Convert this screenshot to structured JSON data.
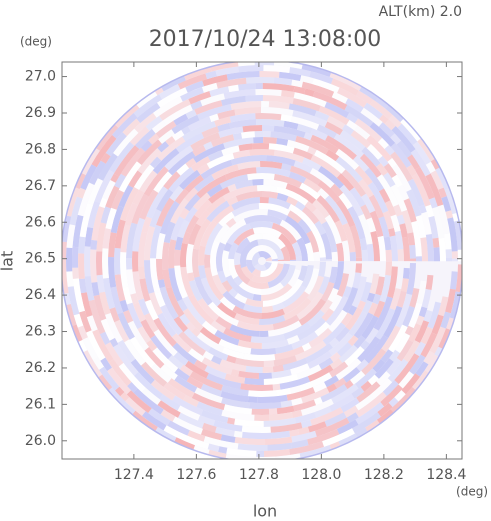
{
  "chart_data": {
    "type": "radar-ppi",
    "title": "2017/10/24 13:08:00",
    "subtitle": "ALT(km) 2.0",
    "y_unit": "(deg)",
    "x_unit": "(deg)",
    "xlabel": "lon",
    "ylabel": "lat",
    "xlim": [
      127.17,
      128.45
    ],
    "xticks": [
      {
        "value": 127.4,
        "label": "127.4"
      },
      {
        "value": 127.6,
        "label": "127.6"
      },
      {
        "value": 127.8,
        "label": "127.8"
      },
      {
        "value": 128.0,
        "label": "128.0"
      },
      {
        "value": 128.2,
        "label": "128.2"
      },
      {
        "value": 128.4,
        "label": "128.4"
      }
    ],
    "ylim": [
      25.95,
      27.04
    ],
    "yticks": [
      {
        "value": 26.0,
        "label": "26.0"
      },
      {
        "value": 26.1,
        "label": "26.1"
      },
      {
        "value": 26.2,
        "label": "26.2"
      },
      {
        "value": 26.3,
        "label": "26.3"
      },
      {
        "value": 26.4,
        "label": "26.4"
      },
      {
        "value": 26.5,
        "label": "26.5"
      },
      {
        "value": 26.6,
        "label": "26.6"
      },
      {
        "value": 26.7,
        "label": "26.7"
      },
      {
        "value": 26.8,
        "label": "26.8"
      },
      {
        "value": 26.9,
        "label": "26.9"
      },
      {
        "value": 27.0,
        "label": "27.0"
      }
    ]
  }
}
